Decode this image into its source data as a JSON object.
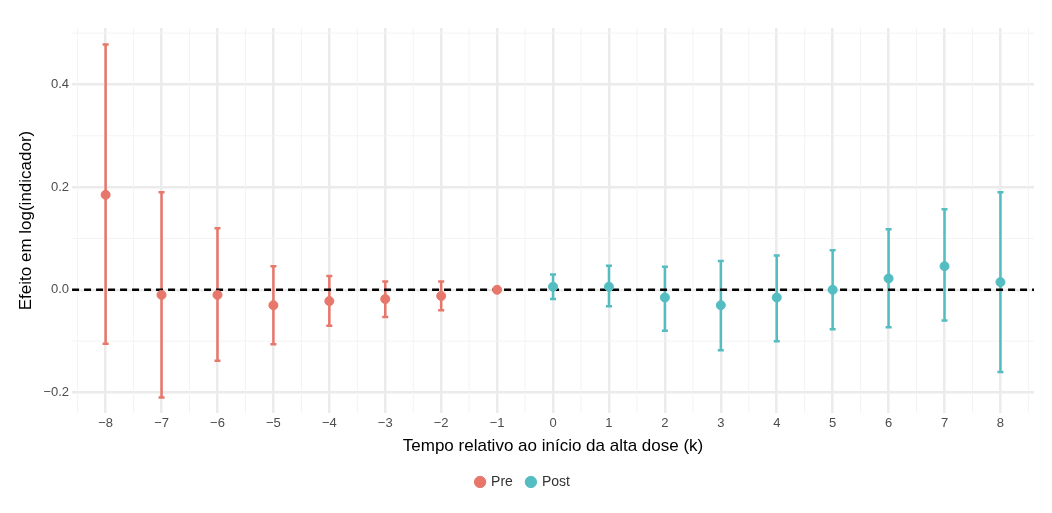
{
  "chart_data": {
    "type": "scatter",
    "xlabel": "Tempo relativo ao início da alta dose (k)",
    "ylabel": "Efeito em log(indicador)",
    "xlim": [
      -8.6,
      8.6
    ],
    "ylim": [
      -0.24,
      0.51
    ],
    "xticks": [
      {
        "value": -8,
        "label": "−8"
      },
      {
        "value": -7,
        "label": "−7"
      },
      {
        "value": -6,
        "label": "−6"
      },
      {
        "value": -5,
        "label": "−5"
      },
      {
        "value": -4,
        "label": "−4"
      },
      {
        "value": -3,
        "label": "−3"
      },
      {
        "value": -2,
        "label": "−2"
      },
      {
        "value": -1,
        "label": "−1"
      },
      0,
      1,
      2,
      3,
      4,
      5,
      6,
      7,
      8
    ],
    "yticks": [
      {
        "value": -0.2,
        "label": "−0.2"
      },
      {
        "value": 0,
        "label": "0.0"
      },
      {
        "value": 0.2,
        "label": "0.2"
      },
      {
        "value": 0.4,
        "label": "0.4"
      }
    ],
    "grid": true,
    "legend": "bottom",
    "marker": "circle",
    "ref_lines": [
      {
        "axis": "y",
        "value": 0,
        "color": "#000000",
        "line_style": "dashed"
      }
    ],
    "series": [
      {
        "name": "Pre",
        "color": "#e8776b",
        "x": [
          -8,
          -7,
          -6,
          -5,
          -4,
          -3,
          -2,
          -1
        ],
        "values": [
          0.185,
          -0.01,
          -0.01,
          -0.03,
          -0.022,
          -0.018,
          -0.012,
          0
        ],
        "errors": [
          [
            -0.105,
            0.478
          ],
          [
            -0.21,
            0.19
          ],
          [
            -0.138,
            0.12
          ],
          [
            -0.106,
            0.046
          ],
          [
            -0.07,
            0.027
          ],
          [
            -0.053,
            0.016
          ],
          [
            -0.04,
            0.016
          ],
          null
        ]
      },
      {
        "name": "Post",
        "color": "#53bdc2",
        "x": [
          0,
          1,
          2,
          3,
          4,
          5,
          6,
          7,
          8
        ],
        "values": [
          0.006,
          0.006,
          -0.015,
          -0.03,
          -0.015,
          0,
          0.022,
          0.046,
          0.015
        ],
        "errors": [
          [
            -0.018,
            0.03
          ],
          [
            -0.032,
            0.047
          ],
          [
            -0.08,
            0.045
          ],
          [
            -0.118,
            0.056
          ],
          [
            -0.1,
            0.067
          ],
          [
            -0.077,
            0.077
          ],
          [
            -0.073,
            0.118
          ],
          [
            -0.06,
            0.157
          ],
          [
            -0.16,
            0.19
          ]
        ]
      }
    ]
  }
}
